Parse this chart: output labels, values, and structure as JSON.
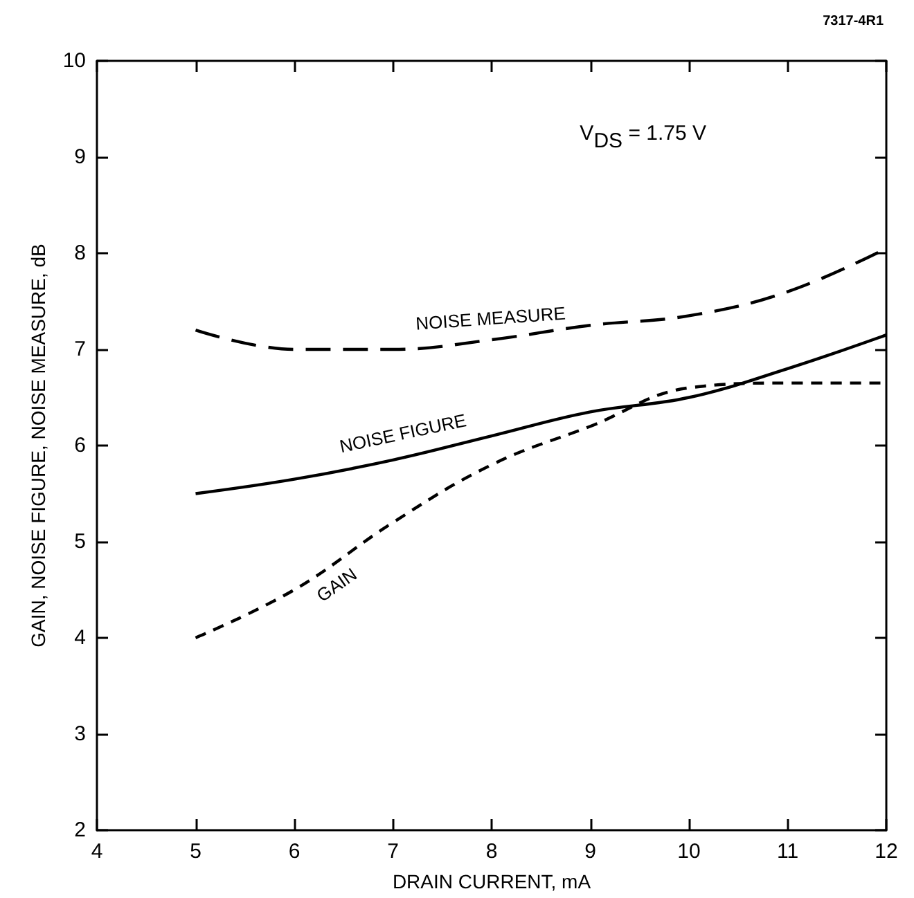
{
  "chart_data": {
    "type": "line",
    "xlabel": "DRAIN CURRENT, mA",
    "ylabel": "GAIN, NOISE FIGURE, NOISE MEASURE, dB",
    "x": [
      5,
      6,
      7,
      8,
      9,
      10,
      11,
      12
    ],
    "xlim": [
      4,
      12
    ],
    "xticks": [
      4,
      5,
      6,
      7,
      8,
      9,
      10,
      11,
      12
    ],
    "ylim": [
      2,
      10
    ],
    "yticks": [
      2,
      3,
      4,
      5,
      6,
      7,
      8,
      9,
      10
    ],
    "grid": false,
    "legend": false,
    "marker": "none",
    "annotations": [
      "V$_{DS}$ = 1.75 V",
      "7317-4R1"
    ],
    "series": [
      {
        "name": "NOISE MEASURE",
        "color": "#000000",
        "line_style": "dashed",
        "values": [
          7.2,
          7.0,
          7.0,
          7.1,
          7.25,
          7.35,
          7.6,
          8.05
        ]
      },
      {
        "name": "NOISE FIGURE",
        "color": "#000000",
        "line_style": "solid",
        "values": [
          5.5,
          5.65,
          5.85,
          6.1,
          6.35,
          6.5,
          6.8,
          7.15
        ]
      },
      {
        "name": "GAIN",
        "color": "#000000",
        "line_style": "dotted",
        "values": [
          4.0,
          4.5,
          5.2,
          5.8,
          6.2,
          6.6,
          6.65,
          6.65
        ]
      }
    ]
  }
}
